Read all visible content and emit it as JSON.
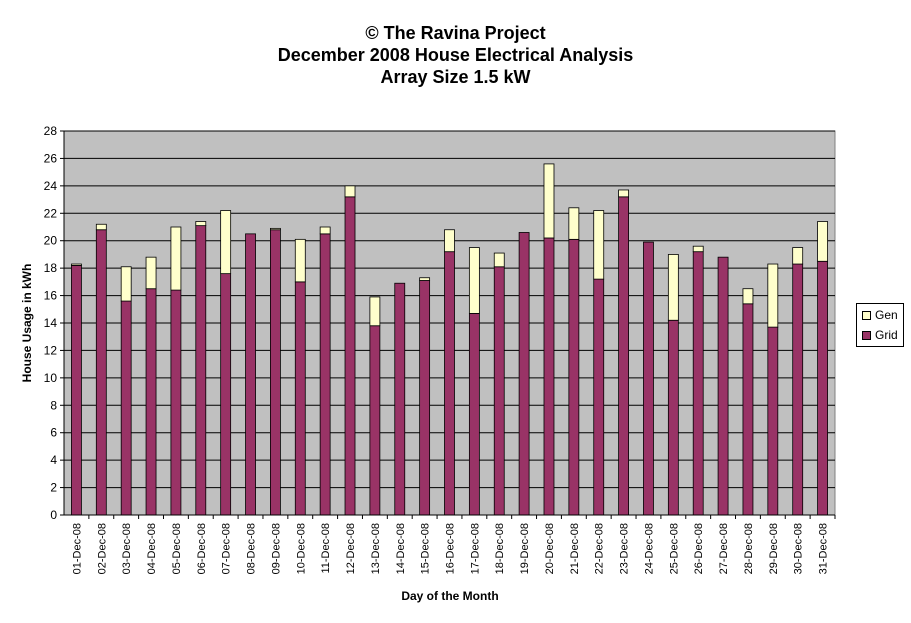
{
  "title_lines": [
    "© The Ravina Project",
    "December 2008 House Electrical Analysis",
    "Array Size 1.5 kW"
  ],
  "chart_data": {
    "type": "bar",
    "stacked": true,
    "ylabel": "House Usage in kWh",
    "xlabel": "Day of the Month",
    "ylim": [
      0,
      28
    ],
    "yticks": [
      0,
      2,
      4,
      6,
      8,
      10,
      12,
      14,
      16,
      18,
      20,
      22,
      24,
      26,
      28
    ],
    "grid": true,
    "legend_position": "right",
    "categories": [
      "01-Dec-08",
      "02-Dec-08",
      "03-Dec-08",
      "04-Dec-08",
      "05-Dec-08",
      "06-Dec-08",
      "07-Dec-08",
      "08-Dec-08",
      "09-Dec-08",
      "10-Dec-08",
      "11-Dec-08",
      "12-Dec-08",
      "13-Dec-08",
      "14-Dec-08",
      "15-Dec-08",
      "16-Dec-08",
      "17-Dec-08",
      "18-Dec-08",
      "19-Dec-08",
      "20-Dec-08",
      "21-Dec-08",
      "22-Dec-08",
      "23-Dec-08",
      "24-Dec-08",
      "25-Dec-08",
      "26-Dec-08",
      "27-Dec-08",
      "28-Dec-08",
      "29-Dec-08",
      "30-Dec-08",
      "31-Dec-08"
    ],
    "series": [
      {
        "name": "Grid",
        "color": "#993366",
        "values": [
          18.2,
          20.8,
          15.6,
          16.5,
          16.4,
          21.1,
          17.6,
          20.5,
          20.8,
          17.0,
          20.5,
          23.2,
          13.8,
          16.9,
          17.1,
          19.2,
          14.7,
          18.1,
          20.6,
          20.2,
          20.1,
          17.2,
          23.2,
          19.9,
          14.2,
          19.2,
          18.8,
          15.4,
          13.7,
          18.3,
          18.5
        ]
      },
      {
        "name": "Gen",
        "color": "#ffffcc",
        "values": [
          0.1,
          0.4,
          2.5,
          2.3,
          4.6,
          0.3,
          4.6,
          0.0,
          0.1,
          3.1,
          0.5,
          0.8,
          2.1,
          0.0,
          0.2,
          1.6,
          4.8,
          1.0,
          0.0,
          5.4,
          2.3,
          5.0,
          0.5,
          0.0,
          4.8,
          0.4,
          0.0,
          1.1,
          4.6,
          1.2,
          2.9
        ]
      }
    ]
  },
  "legend": [
    {
      "label": "Gen",
      "color": "#ffffcc"
    },
    {
      "label": "Grid",
      "color": "#993366"
    }
  ]
}
